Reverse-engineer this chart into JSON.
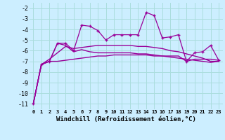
{
  "xlabel": "Windchill (Refroidissement éolien,°C)",
  "bg_color": "#cceeff",
  "grid_color": "#aadddd",
  "line_color": "#990099",
  "ylim": [
    -11.5,
    -1.5
  ],
  "yticks": [
    -11,
    -10,
    -9,
    -8,
    -7,
    -6,
    -5,
    -4,
    -3,
    -2
  ],
  "spiky_line": [
    -11.0,
    -7.3,
    -7.0,
    -5.3,
    -5.3,
    -6.0,
    -3.6,
    -3.7,
    -4.1,
    -5.0,
    -4.5,
    -4.5,
    -4.5,
    -4.5,
    -2.4,
    -2.7,
    -4.8,
    -4.7,
    -4.5,
    -7.0,
    -6.2,
    -6.1,
    -5.5,
    -6.9
  ],
  "upper_curve": [
    -11.0,
    -7.3,
    -6.8,
    -6.2,
    -5.6,
    -5.8,
    -5.7,
    -5.6,
    -5.5,
    -5.5,
    -5.5,
    -5.5,
    -5.5,
    -5.6,
    -5.6,
    -5.7,
    -5.8,
    -6.0,
    -6.1,
    -6.3,
    -6.5,
    -6.7,
    -7.0,
    -7.0
  ],
  "lower_curve": [
    -11.0,
    -7.3,
    -7.0,
    -7.0,
    -6.9,
    -6.8,
    -6.7,
    -6.6,
    -6.5,
    -6.5,
    -6.4,
    -6.4,
    -6.4,
    -6.4,
    -6.4,
    -6.5,
    -6.5,
    -6.6,
    -6.7,
    -6.8,
    -6.9,
    -7.0,
    -7.1,
    -7.0
  ],
  "trend_line": [
    -11.0,
    -7.3,
    -7.0,
    -5.3,
    -5.5,
    -6.1,
    -5.9,
    -6.1,
    -6.2,
    -6.2,
    -6.2,
    -6.2,
    -6.2,
    -6.3,
    -6.3,
    -6.4,
    -6.5,
    -6.5,
    -6.5,
    -7.0,
    -6.8,
    -6.8,
    -6.8,
    -6.9
  ],
  "figsize": [
    3.2,
    2.0
  ],
  "dpi": 100
}
